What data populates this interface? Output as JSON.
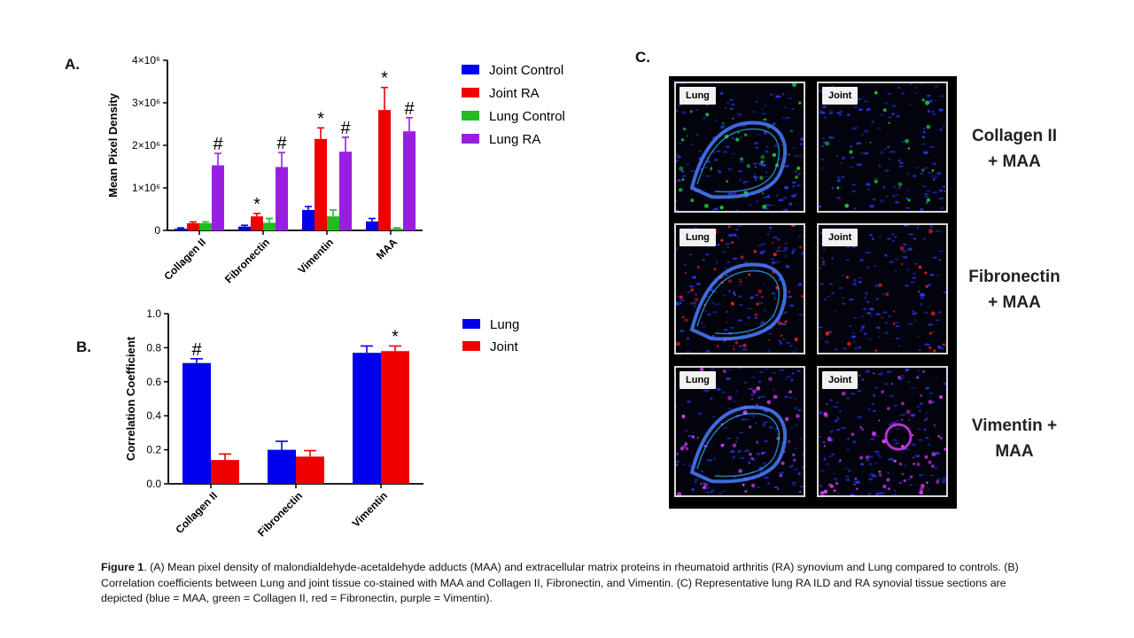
{
  "panel_labels": {
    "a": "A.",
    "b": "B.",
    "c": "C."
  },
  "chart_data": [
    {
      "type": "bar",
      "panel": "A.",
      "ylabel": "Mean Pixel Density",
      "ylim": [
        0,
        4000000
      ],
      "yticks": [
        0,
        1000000,
        2000000,
        3000000,
        4000000
      ],
      "ytick_labels": [
        "0",
        "1×10⁶",
        "2×10⁶",
        "3×10⁶",
        "4×10⁶"
      ],
      "categories": [
        "Collagen II",
        "Fibronectin",
        "Vimentin",
        "MAA"
      ],
      "series": [
        {
          "name": "Joint Control",
          "color": "#0000ee",
          "values": [
            40000,
            90000,
            480000,
            210000
          ],
          "errors": [
            20000,
            30000,
            80000,
            70000
          ],
          "marks": [
            "",
            "",
            "",
            ""
          ]
        },
        {
          "name": "Joint RA",
          "color": "#ee0000",
          "values": [
            170000,
            330000,
            2150000,
            2830000
          ],
          "errors": [
            30000,
            70000,
            260000,
            530000
          ],
          "marks": [
            "",
            "*",
            "*",
            "*"
          ]
        },
        {
          "name": "Lung Control",
          "color": "#22bb22",
          "values": [
            170000,
            180000,
            330000,
            40000
          ],
          "errors": [
            30000,
            100000,
            150000,
            20000
          ],
          "marks": [
            "",
            "",
            "",
            ""
          ]
        },
        {
          "name": "Lung RA",
          "color": "#9a1ee0",
          "values": [
            1530000,
            1490000,
            1850000,
            2330000
          ],
          "errors": [
            280000,
            340000,
            340000,
            320000
          ],
          "marks": [
            "#",
            "#",
            "#",
            "#"
          ]
        }
      ],
      "legend": "right",
      "grid": false
    },
    {
      "type": "bar",
      "panel": "B.",
      "ylabel": "Correlation Coefficient",
      "ylim": [
        0,
        1.0
      ],
      "yticks": [
        0,
        0.2,
        0.4,
        0.6,
        0.8,
        1.0
      ],
      "ytick_labels": [
        "0.0",
        "0.2",
        "0.4",
        "0.6",
        "0.8",
        "1.0"
      ],
      "categories": [
        "Collagen II",
        "Fibronectin",
        "Vimentin"
      ],
      "series": [
        {
          "name": "Lung",
          "color": "#0000ee",
          "values": [
            0.71,
            0.2,
            0.77
          ],
          "errors": [
            0.025,
            0.05,
            0.04
          ],
          "marks": [
            "#",
            "",
            ""
          ]
        },
        {
          "name": "Joint",
          "color": "#ee0000",
          "values": [
            0.14,
            0.16,
            0.78
          ],
          "errors": [
            0.035,
            0.035,
            0.03
          ],
          "marks": [
            "",
            "",
            "*"
          ]
        }
      ],
      "legend": "right",
      "grid": false
    }
  ],
  "micrographs": {
    "tags": {
      "lung": "Lung",
      "joint": "Joint"
    },
    "rows": [
      {
        "label_line1": "Collagen II",
        "label_line2": "+ MAA",
        "dot_color": "#20d040"
      },
      {
        "label_line1": "Fibronectin",
        "label_line2": "+ MAA",
        "dot_color": "#ff2020"
      },
      {
        "label_line1": "Vimentin +",
        "label_line2": "MAA",
        "dot_color": "#e040ff"
      }
    ],
    "colors": {
      "background": "#000000",
      "maa_blue": "#2a3cff"
    }
  },
  "caption": {
    "label": "Figure 1",
    "text": ". (A) Mean pixel density of malondialdehyde-acetaldehyde  adducts (MAA) and extracellular matrix proteins in rheumatoid arthritis (RA) synovium and Lung compared to controls.  (B) Correlation coefficients between Lung and joint tissue co-stained with MAA  and Collagen II, Fibronectin, and Vimentin.  (C) Representative lung RA ILD and RA synovial tissue sections are depicted (blue = MAA,  green = Collagen II, red = Fibronectin, purple = Vimentin)."
  }
}
